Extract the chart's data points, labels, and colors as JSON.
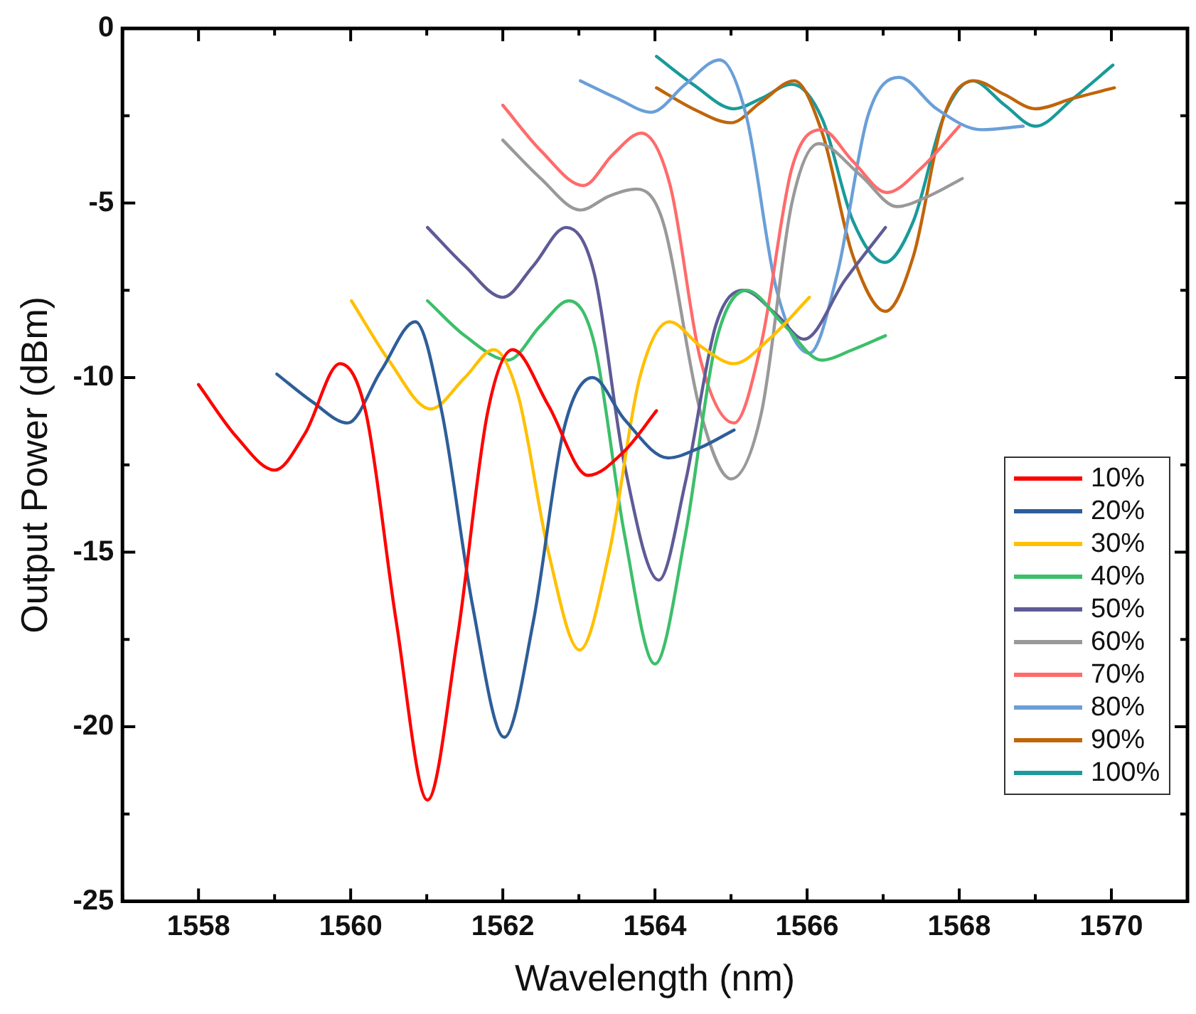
{
  "chart_data": {
    "type": "line",
    "xlabel": "Wavelength (nm)",
    "ylabel": "Output Power (dBm)",
    "xlim": [
      1557,
      1571
    ],
    "ylim": [
      -25,
      0
    ],
    "xticks": [
      {
        "value": 1557,
        "label": null
      },
      1558,
      {
        "value": 1559,
        "label": null
      },
      1560,
      {
        "value": 1561,
        "label": null
      },
      1562,
      {
        "value": 1563,
        "label": null
      },
      1564,
      {
        "value": 1565,
        "label": null
      },
      1566,
      {
        "value": 1567,
        "label": null
      },
      1568,
      {
        "value": 1569,
        "label": null
      },
      1570
    ],
    "yticks": [
      -25,
      {
        "value": -22.5,
        "label": null
      },
      -20,
      {
        "value": -17.5,
        "label": null
      },
      -15,
      {
        "value": -12.5,
        "label": null
      },
      -10,
      {
        "value": -7.5,
        "label": null
      },
      -5,
      {
        "value": -2.5,
        "label": null
      },
      0
    ],
    "grid": false,
    "legend": "right",
    "marker": "none",
    "line_style": "solid",
    "series": [
      {
        "name": "10%",
        "color": "#ff0000",
        "x": [
          1558,
          1558.5,
          1559,
          1559.4,
          1559.86,
          1560.2,
          1560.6,
          1561.01,
          1561.4,
          1561.8,
          1562.13,
          1562.6,
          1563.12,
          1563.6,
          1564.02
        ],
        "values": [
          -10.2,
          -11.7,
          -12.65,
          -11.6,
          -9.6,
          -11,
          -17,
          -22.1,
          -17.5,
          -11,
          -9.2,
          -10.8,
          -12.8,
          -12.1,
          -10.95
        ]
      },
      {
        "name": "20%",
        "color": "#2e5e9a",
        "x": [
          1559.03,
          1559.5,
          1559.96,
          1560.4,
          1560.85,
          1561.2,
          1561.6,
          1562.02,
          1562.4,
          1562.8,
          1563.18,
          1563.6,
          1564.17,
          1564.6,
          1565.04
        ],
        "values": [
          -9.9,
          -10.7,
          -11.3,
          -9.8,
          -8.4,
          -11,
          -16.5,
          -20.3,
          -17,
          -11.5,
          -10,
          -11.2,
          -12.3,
          -12,
          -11.5
        ]
      },
      {
        "name": "30%",
        "color": "#ffc000",
        "x": [
          1560.01,
          1560.5,
          1561.05,
          1561.5,
          1561.88,
          1562.2,
          1562.6,
          1563.01,
          1563.4,
          1563.8,
          1564.19,
          1564.6,
          1565.04,
          1565.5,
          1566.03
        ],
        "values": [
          -7.8,
          -9.5,
          -10.9,
          -10,
          -9.2,
          -10.5,
          -15,
          -17.8,
          -15,
          -10,
          -8.4,
          -9.1,
          -9.6,
          -8.9,
          -7.7
        ]
      },
      {
        "name": "40%",
        "color": "#3cbf6a",
        "x": [
          1561.01,
          1561.5,
          1562.07,
          1562.5,
          1562.87,
          1563.2,
          1563.6,
          1564,
          1564.4,
          1564.8,
          1565.2,
          1565.7,
          1566.19,
          1566.6,
          1567.03
        ],
        "values": [
          -7.8,
          -8.8,
          -9.5,
          -8.5,
          -7.8,
          -9,
          -14.5,
          -18.2,
          -14.5,
          -9,
          -7.5,
          -8.5,
          -9.5,
          -9.2,
          -8.8
        ]
      },
      {
        "name": "50%",
        "color": "#5f5b96",
        "x": [
          1561.01,
          1561.5,
          1562,
          1562.4,
          1562.83,
          1563.2,
          1563.6,
          1564.05,
          1564.4,
          1564.8,
          1565.16,
          1565.6,
          1565.96,
          1566.5,
          1567.03
        ],
        "values": [
          -5.7,
          -6.8,
          -7.7,
          -6.8,
          -5.7,
          -7,
          -12.5,
          -15.8,
          -13,
          -8.5,
          -7.5,
          -8.2,
          -8.9,
          -7.2,
          -5.7
        ]
      },
      {
        "name": "60%",
        "color": "#999999",
        "x": [
          1562,
          1562.5,
          1563.02,
          1563.4,
          1563.76,
          1564.1,
          1564.6,
          1565,
          1565.4,
          1565.8,
          1566.15,
          1566.7,
          1567.18,
          1567.6,
          1568.04
        ],
        "values": [
          -3.2,
          -4.3,
          -5.2,
          -4.8,
          -4.6,
          -5.5,
          -11,
          -12.9,
          -11,
          -5,
          -3.3,
          -4.2,
          -5.1,
          -4.8,
          -4.3
        ]
      },
      {
        "name": "70%",
        "color": "#ff6b6b",
        "x": [
          1562,
          1562.5,
          1563.06,
          1563.45,
          1563.82,
          1564.2,
          1564.6,
          1565.04,
          1565.4,
          1565.8,
          1566.19,
          1566.6,
          1567.05,
          1567.5,
          1568
        ],
        "values": [
          -2.2,
          -3.5,
          -4.5,
          -3.6,
          -3,
          -4.5,
          -9.5,
          -11.3,
          -9,
          -4,
          -2.9,
          -3.8,
          -4.7,
          -4,
          -2.8
        ]
      },
      {
        "name": "80%",
        "color": "#6a9fd8",
        "x": [
          1563.02,
          1563.5,
          1563.95,
          1564.4,
          1564.85,
          1565.2,
          1565.6,
          1566.03,
          1566.4,
          1566.8,
          1567.21,
          1567.7,
          1568.29,
          1568.84
        ],
        "values": [
          -1.5,
          -2,
          -2.4,
          -1.6,
          -0.9,
          -2.5,
          -7.5,
          -9.3,
          -7,
          -2.5,
          -1.4,
          -2.3,
          -2.9,
          -2.8
        ]
      },
      {
        "name": "90%",
        "color": "#c0650a",
        "x": [
          1564.02,
          1564.5,
          1565,
          1565.4,
          1565.83,
          1566.2,
          1566.6,
          1567.03,
          1567.4,
          1567.8,
          1568.2,
          1568.6,
          1569,
          1569.5,
          1570.04
        ],
        "values": [
          -1.7,
          -2.3,
          -2.7,
          -2.1,
          -1.5,
          -3,
          -6.5,
          -8.1,
          -6.5,
          -2.5,
          -1.5,
          -1.9,
          -2.3,
          -2,
          -1.7
        ]
      },
      {
        "name": "100%",
        "color": "#1a9a9a",
        "x": [
          1564.02,
          1564.5,
          1565.04,
          1565.4,
          1565.8,
          1566.2,
          1566.6,
          1567.02,
          1567.4,
          1567.8,
          1568.17,
          1568.6,
          1569,
          1569.5,
          1570.02
        ],
        "values": [
          -0.8,
          -1.6,
          -2.3,
          -2,
          -1.6,
          -2.6,
          -5.5,
          -6.7,
          -5.5,
          -2.5,
          -1.5,
          -2.2,
          -2.8,
          -2,
          -1.05
        ]
      }
    ]
  }
}
